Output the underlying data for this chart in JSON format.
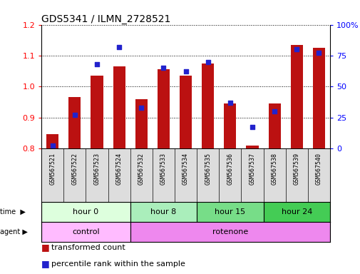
{
  "title": "GDS5341 / ILMN_2728521",
  "samples": [
    "GSM567521",
    "GSM567522",
    "GSM567523",
    "GSM567524",
    "GSM567532",
    "GSM567533",
    "GSM567534",
    "GSM567535",
    "GSM567536",
    "GSM567537",
    "GSM567538",
    "GSM567539",
    "GSM567540"
  ],
  "transformed_count": [
    0.845,
    0.965,
    1.035,
    1.065,
    0.96,
    1.055,
    1.035,
    1.075,
    0.945,
    0.81,
    0.945,
    1.135,
    1.125
  ],
  "percentile_rank": [
    2,
    27,
    68,
    82,
    33,
    65,
    62,
    70,
    37,
    17,
    30,
    80,
    77
  ],
  "ylim_left": [
    0.8,
    1.2
  ],
  "ylim_right": [
    0,
    100
  ],
  "yticks_left": [
    0.8,
    0.9,
    1.0,
    1.1,
    1.2
  ],
  "yticks_right": [
    0,
    25,
    50,
    75,
    100
  ],
  "bar_color": "#bb1111",
  "dot_color": "#2222cc",
  "bar_bottom": 0.8,
  "time_groups": [
    {
      "label": "hour 0",
      "start": 0,
      "end": 4,
      "color": "#ddffdd"
    },
    {
      "label": "hour 8",
      "start": 4,
      "end": 7,
      "color": "#aaeebb"
    },
    {
      "label": "hour 15",
      "start": 7,
      "end": 10,
      "color": "#77dd88"
    },
    {
      "label": "hour 24",
      "start": 10,
      "end": 13,
      "color": "#44cc55"
    }
  ],
  "agent_groups": [
    {
      "label": "control",
      "start": 0,
      "end": 4,
      "color": "#ffbbff"
    },
    {
      "label": "rotenone",
      "start": 4,
      "end": 13,
      "color": "#ee88ee"
    }
  ],
  "bg_color": "#ffffff",
  "sample_bg": "#dddddd",
  "title_fontsize": 10,
  "tick_fontsize": 8,
  "label_fontsize": 8,
  "legend_fontsize": 8
}
